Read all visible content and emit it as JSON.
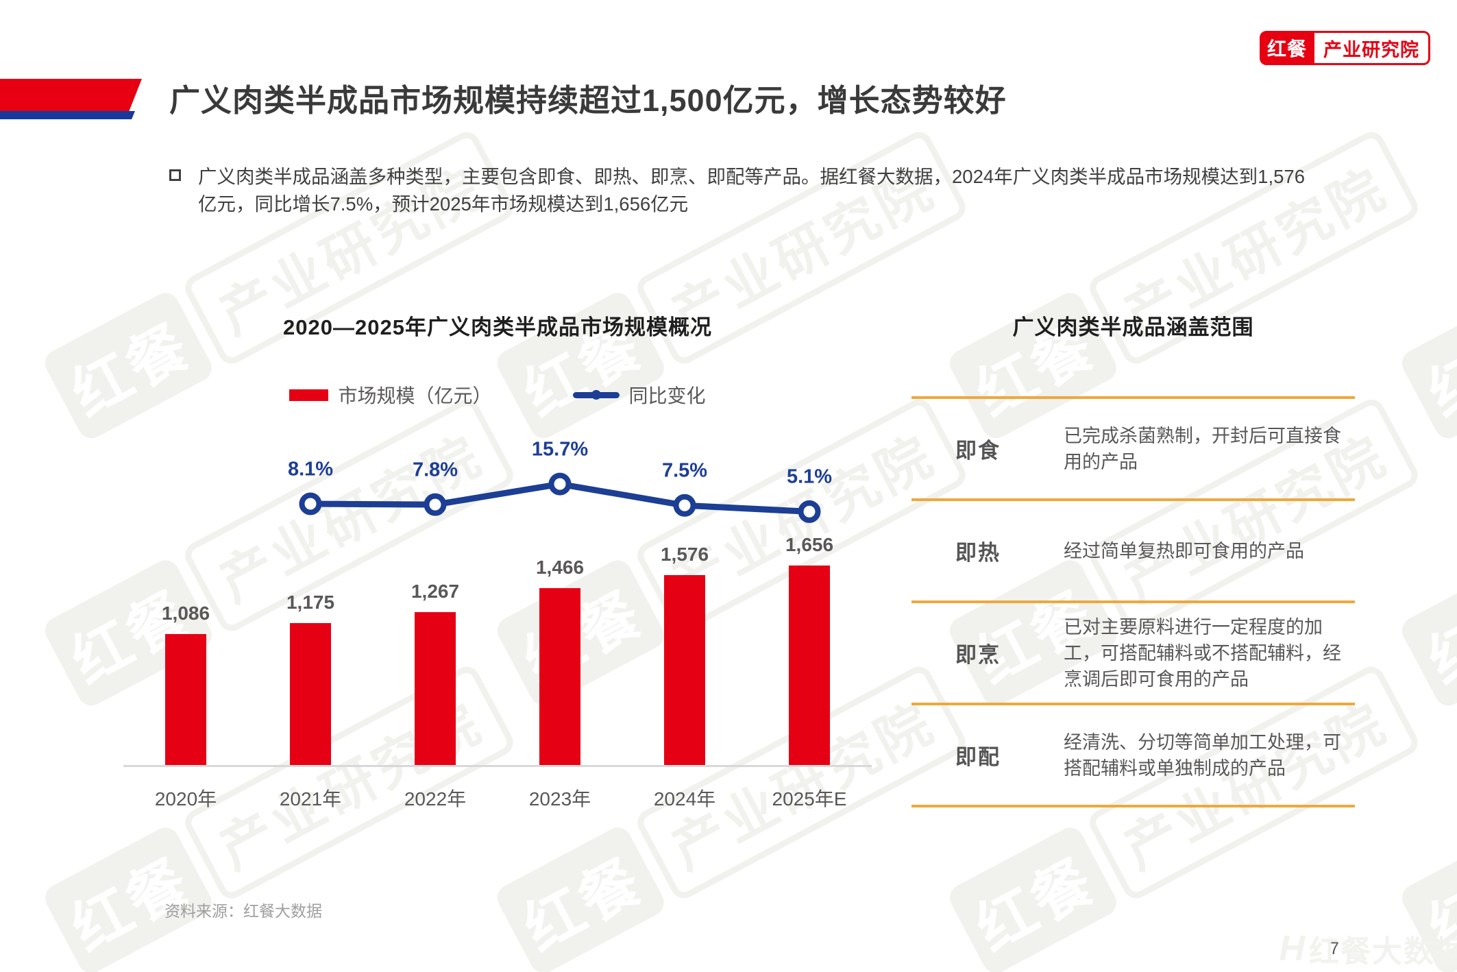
{
  "brand": {
    "logo_primary": "红餐",
    "logo_secondary": "产业研究院"
  },
  "watermark": {
    "brand": "红餐",
    "org": "产业研究院",
    "corner_text": "红餐大数据",
    "corner_glyph": "H"
  },
  "header": {
    "title": "广义肉类半成品市场规模持续超过1,500亿元，增长态势较好"
  },
  "intro": {
    "text": "广义肉类半成品涵盖多种类型，主要包含即食、即热、即烹、即配等产品。据红餐大数据，2024年广义肉类半成品市场规模达到1,576亿元，同比增长7.5%，预计2025年市场规模达到1,656亿元"
  },
  "chart_data": {
    "type": "bar+line",
    "title": "2020—2025年广义肉类半成品市场规模概况",
    "categories": [
      "2020年",
      "2021年",
      "2022年",
      "2023年",
      "2024年",
      "2025年E"
    ],
    "series": [
      {
        "name": "市场规模（亿元）",
        "type": "bar",
        "color": "#e60014",
        "values": [
          1086,
          1175,
          1267,
          1466,
          1576,
          1656
        ],
        "labels": [
          "1,086",
          "1,175",
          "1,267",
          "1,466",
          "1,576",
          "1,656"
        ]
      },
      {
        "name": "同比变化",
        "type": "line",
        "color": "#1c3e94",
        "values": [
          null,
          8.1,
          7.8,
          15.7,
          7.5,
          5.1
        ],
        "labels": [
          null,
          "8.1%",
          "7.8%",
          "15.7%",
          "7.5%",
          "5.1%"
        ]
      }
    ],
    "xlabel": "",
    "ylabel": "",
    "ylim_bar": [
      0,
      2000
    ],
    "ylim_line_pct": [
      0,
      20
    ],
    "grid": false,
    "legend_position": "top"
  },
  "coverage": {
    "title": "广义肉类半成品涵盖范围",
    "rows": [
      {
        "term": "即食",
        "desc": "已完成杀菌熟制，开封后可直接食用的产品"
      },
      {
        "term": "即热",
        "desc": "经过简单复热即可食用的产品"
      },
      {
        "term": "即烹",
        "desc": "已对主要原料进行一定程度的加工，可搭配辅料或不搭配辅料，经烹调后即可食用的产品"
      },
      {
        "term": "即配",
        "desc": "经清洗、分切等简单加工处理，可搭配辅料或单独制成的产品"
      }
    ]
  },
  "footer": {
    "source": "资料来源：红餐大数据",
    "page_number": "7"
  },
  "colors": {
    "accent_red": "#e60012",
    "bar_red": "#e60014",
    "line_navy": "#1c3e94",
    "table_gold": "#eca93c",
    "text_gray": "#595757",
    "baseline_gray": "#d8d8d8",
    "watermark_gray": "#f1f1ee"
  }
}
